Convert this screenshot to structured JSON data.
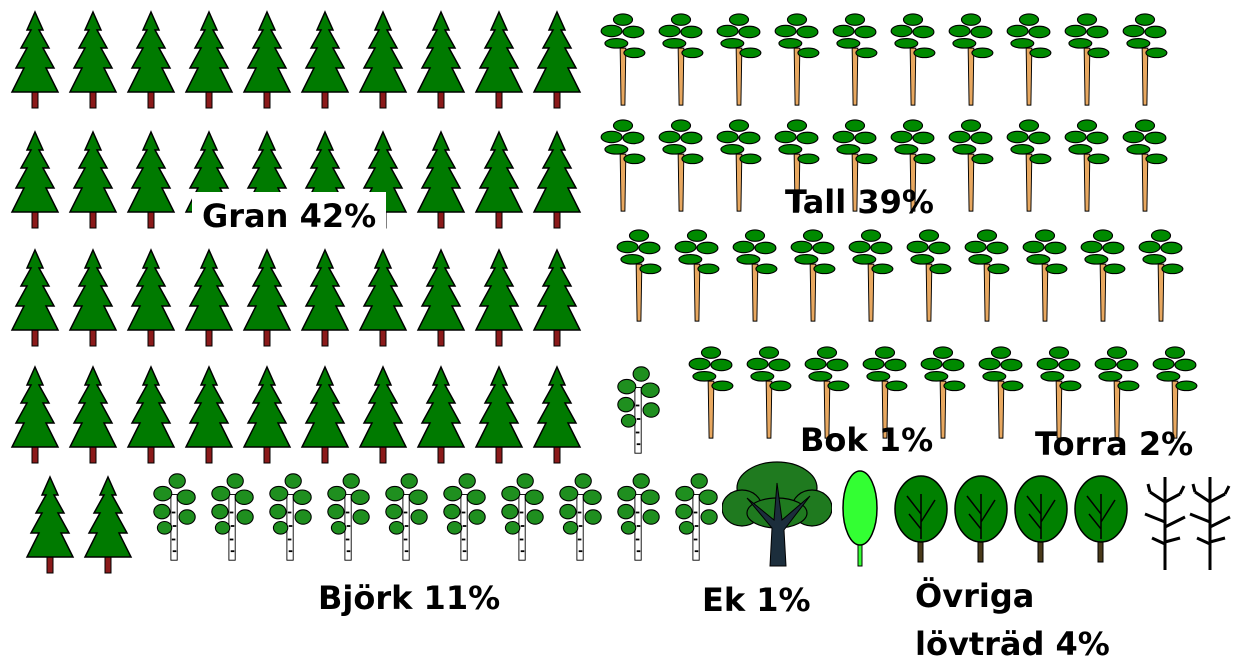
{
  "chart_data": {
    "type": "pictograph",
    "categories": [
      "Gran",
      "Tall",
      "Björk",
      "Ek",
      "Bok",
      "Övriga lövträd",
      "Torra"
    ],
    "values": [
      42,
      39,
      11,
      1,
      1,
      4,
      2
    ],
    "value_labels": [
      "42%",
      "39%",
      "11%",
      "1%",
      "1%",
      "4%",
      "2%"
    ],
    "colors": [
      "#007a00",
      "#008a00",
      "#1f8f1f",
      "#1f7a1f",
      "#33ff33",
      "#008000",
      "#000000"
    ]
  }
}
